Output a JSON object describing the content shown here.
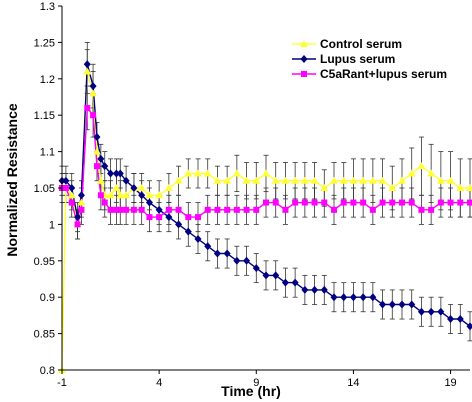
{
  "chart_data": {
    "type": "line",
    "title": "",
    "xlabel": "Time (hr)",
    "ylabel": "Normalized Resistance",
    "xlim": [
      -1,
      20
    ],
    "ylim": [
      0.8,
      1.3
    ],
    "x_ticks": [
      -1,
      4,
      9,
      14,
      19
    ],
    "y_ticks": [
      0.8,
      0.85,
      0.9,
      0.95,
      1,
      1.05,
      1.1,
      1.15,
      1.2,
      1.25,
      1.3
    ],
    "y_tick_labels": [
      "0.8",
      "0.85",
      "0.9",
      "0.95",
      "1",
      "1.05",
      "1.1",
      "1.15",
      "1.2",
      "1.25",
      "1.3"
    ],
    "grid": false,
    "legend_position": "top-right",
    "series": [
      {
        "name": "Control serum",
        "color": "#ffff33",
        "marker": "triangle",
        "x": [
          -1.0,
          -0.8,
          -0.5,
          -0.2,
          0.0,
          0.3,
          0.6,
          0.8,
          1.0,
          1.2,
          1.5,
          1.8,
          2.0,
          2.3,
          2.7,
          3.1,
          3.5,
          4.0,
          4.5,
          5.0,
          5.5,
          6.0,
          6.5,
          7.0,
          7.5,
          8.0,
          8.5,
          9.0,
          9.5,
          10.0,
          10.5,
          11.0,
          11.5,
          12.0,
          12.5,
          13.0,
          13.5,
          14.0,
          14.5,
          15.0,
          15.5,
          16.0,
          16.5,
          17.0,
          17.5,
          18.0,
          18.5,
          19.0,
          19.5,
          20.0
        ],
        "y": [
          0.8,
          1.05,
          1.04,
          1.0,
          1.03,
          1.21,
          1.18,
          1.1,
          1.06,
          1.04,
          1.04,
          1.05,
          1.04,
          1.04,
          1.05,
          1.05,
          1.04,
          1.04,
          1.05,
          1.06,
          1.07,
          1.07,
          1.07,
          1.06,
          1.06,
          1.07,
          1.06,
          1.06,
          1.07,
          1.06,
          1.06,
          1.06,
          1.06,
          1.06,
          1.05,
          1.06,
          1.06,
          1.06,
          1.06,
          1.06,
          1.06,
          1.05,
          1.06,
          1.07,
          1.08,
          1.07,
          1.06,
          1.06,
          1.05,
          1.05
        ],
        "err": [
          0.0,
          0.02,
          0.02,
          0.02,
          0.02,
          0.03,
          0.03,
          0.02,
          0.02,
          0.02,
          0.02,
          0.02,
          0.02,
          0.02,
          0.02,
          0.02,
          0.02,
          0.02,
          0.02,
          0.02,
          0.02,
          0.02,
          0.02,
          0.02,
          0.02,
          0.025,
          0.025,
          0.025,
          0.025,
          0.025,
          0.025,
          0.025,
          0.025,
          0.025,
          0.025,
          0.025,
          0.025,
          0.03,
          0.03,
          0.03,
          0.03,
          0.03,
          0.03,
          0.035,
          0.04,
          0.04,
          0.04,
          0.04,
          0.04,
          0.04
        ]
      },
      {
        "name": "Lupus serum",
        "color": "#000080",
        "marker": "diamond",
        "x": [
          -1.0,
          -0.8,
          -0.5,
          -0.2,
          0.0,
          0.3,
          0.6,
          0.8,
          1.0,
          1.2,
          1.5,
          1.8,
          2.0,
          2.3,
          2.7,
          3.1,
          3.5,
          4.0,
          4.5,
          5.0,
          5.5,
          6.0,
          6.5,
          7.0,
          7.5,
          8.0,
          8.5,
          9.0,
          9.5,
          10.0,
          10.5,
          11.0,
          11.5,
          12.0,
          12.5,
          13.0,
          13.5,
          14.0,
          14.5,
          15.0,
          15.5,
          16.0,
          16.5,
          17.0,
          17.5,
          18.0,
          18.5,
          19.0,
          19.5,
          20.0
        ],
        "y": [
          1.06,
          1.06,
          1.05,
          1.01,
          1.04,
          1.22,
          1.19,
          1.12,
          1.09,
          1.08,
          1.07,
          1.07,
          1.07,
          1.06,
          1.05,
          1.04,
          1.03,
          1.02,
          1.01,
          1.0,
          0.99,
          0.98,
          0.97,
          0.96,
          0.96,
          0.95,
          0.95,
          0.94,
          0.93,
          0.93,
          0.92,
          0.92,
          0.91,
          0.91,
          0.91,
          0.9,
          0.9,
          0.9,
          0.9,
          0.9,
          0.89,
          0.89,
          0.89,
          0.89,
          0.88,
          0.88,
          0.88,
          0.87,
          0.87,
          0.86
        ],
        "err": [
          0.02,
          0.02,
          0.02,
          0.02,
          0.02,
          0.03,
          0.03,
          0.02,
          0.02,
          0.02,
          0.02,
          0.02,
          0.02,
          0.02,
          0.02,
          0.02,
          0.02,
          0.02,
          0.02,
          0.02,
          0.02,
          0.02,
          0.02,
          0.02,
          0.02,
          0.02,
          0.02,
          0.02,
          0.02,
          0.02,
          0.02,
          0.02,
          0.02,
          0.02,
          0.02,
          0.02,
          0.02,
          0.02,
          0.02,
          0.02,
          0.02,
          0.02,
          0.02,
          0.02,
          0.02,
          0.02,
          0.02,
          0.02,
          0.02,
          0.02
        ]
      },
      {
        "name": "C5aRant+lupus serum",
        "color": "#ff00ff",
        "marker": "square",
        "x": [
          -1.0,
          -0.8,
          -0.5,
          -0.2,
          0.0,
          0.3,
          0.6,
          0.8,
          1.0,
          1.2,
          1.5,
          1.8,
          2.0,
          2.3,
          2.7,
          3.1,
          3.5,
          4.0,
          4.5,
          5.0,
          5.5,
          6.0,
          6.5,
          7.0,
          7.5,
          8.0,
          8.5,
          9.0,
          9.5,
          10.0,
          10.5,
          11.0,
          11.5,
          12.0,
          12.5,
          13.0,
          13.5,
          14.0,
          14.5,
          15.0,
          15.5,
          16.0,
          16.5,
          17.0,
          17.5,
          18.0,
          18.5,
          19.0,
          19.5,
          20.0
        ],
        "y": [
          1.05,
          1.05,
          1.03,
          1.0,
          1.02,
          1.16,
          1.15,
          1.08,
          1.04,
          1.03,
          1.02,
          1.02,
          1.02,
          1.02,
          1.02,
          1.02,
          1.01,
          1.01,
          1.02,
          1.02,
          1.01,
          1.01,
          1.02,
          1.02,
          1.02,
          1.02,
          1.02,
          1.02,
          1.03,
          1.03,
          1.02,
          1.03,
          1.03,
          1.03,
          1.03,
          1.02,
          1.03,
          1.03,
          1.03,
          1.02,
          1.03,
          1.03,
          1.03,
          1.03,
          1.02,
          1.02,
          1.03,
          1.03,
          1.03,
          1.03
        ],
        "err": [
          0.02,
          0.02,
          0.02,
          0.02,
          0.02,
          0.03,
          0.03,
          0.02,
          0.02,
          0.02,
          0.02,
          0.02,
          0.02,
          0.02,
          0.02,
          0.02,
          0.02,
          0.02,
          0.02,
          0.02,
          0.02,
          0.02,
          0.02,
          0.02,
          0.02,
          0.02,
          0.02,
          0.02,
          0.02,
          0.02,
          0.02,
          0.02,
          0.02,
          0.02,
          0.02,
          0.02,
          0.02,
          0.02,
          0.02,
          0.02,
          0.02,
          0.02,
          0.02,
          0.02,
          0.02,
          0.02,
          0.02,
          0.02,
          0.02,
          0.02
        ]
      }
    ]
  }
}
